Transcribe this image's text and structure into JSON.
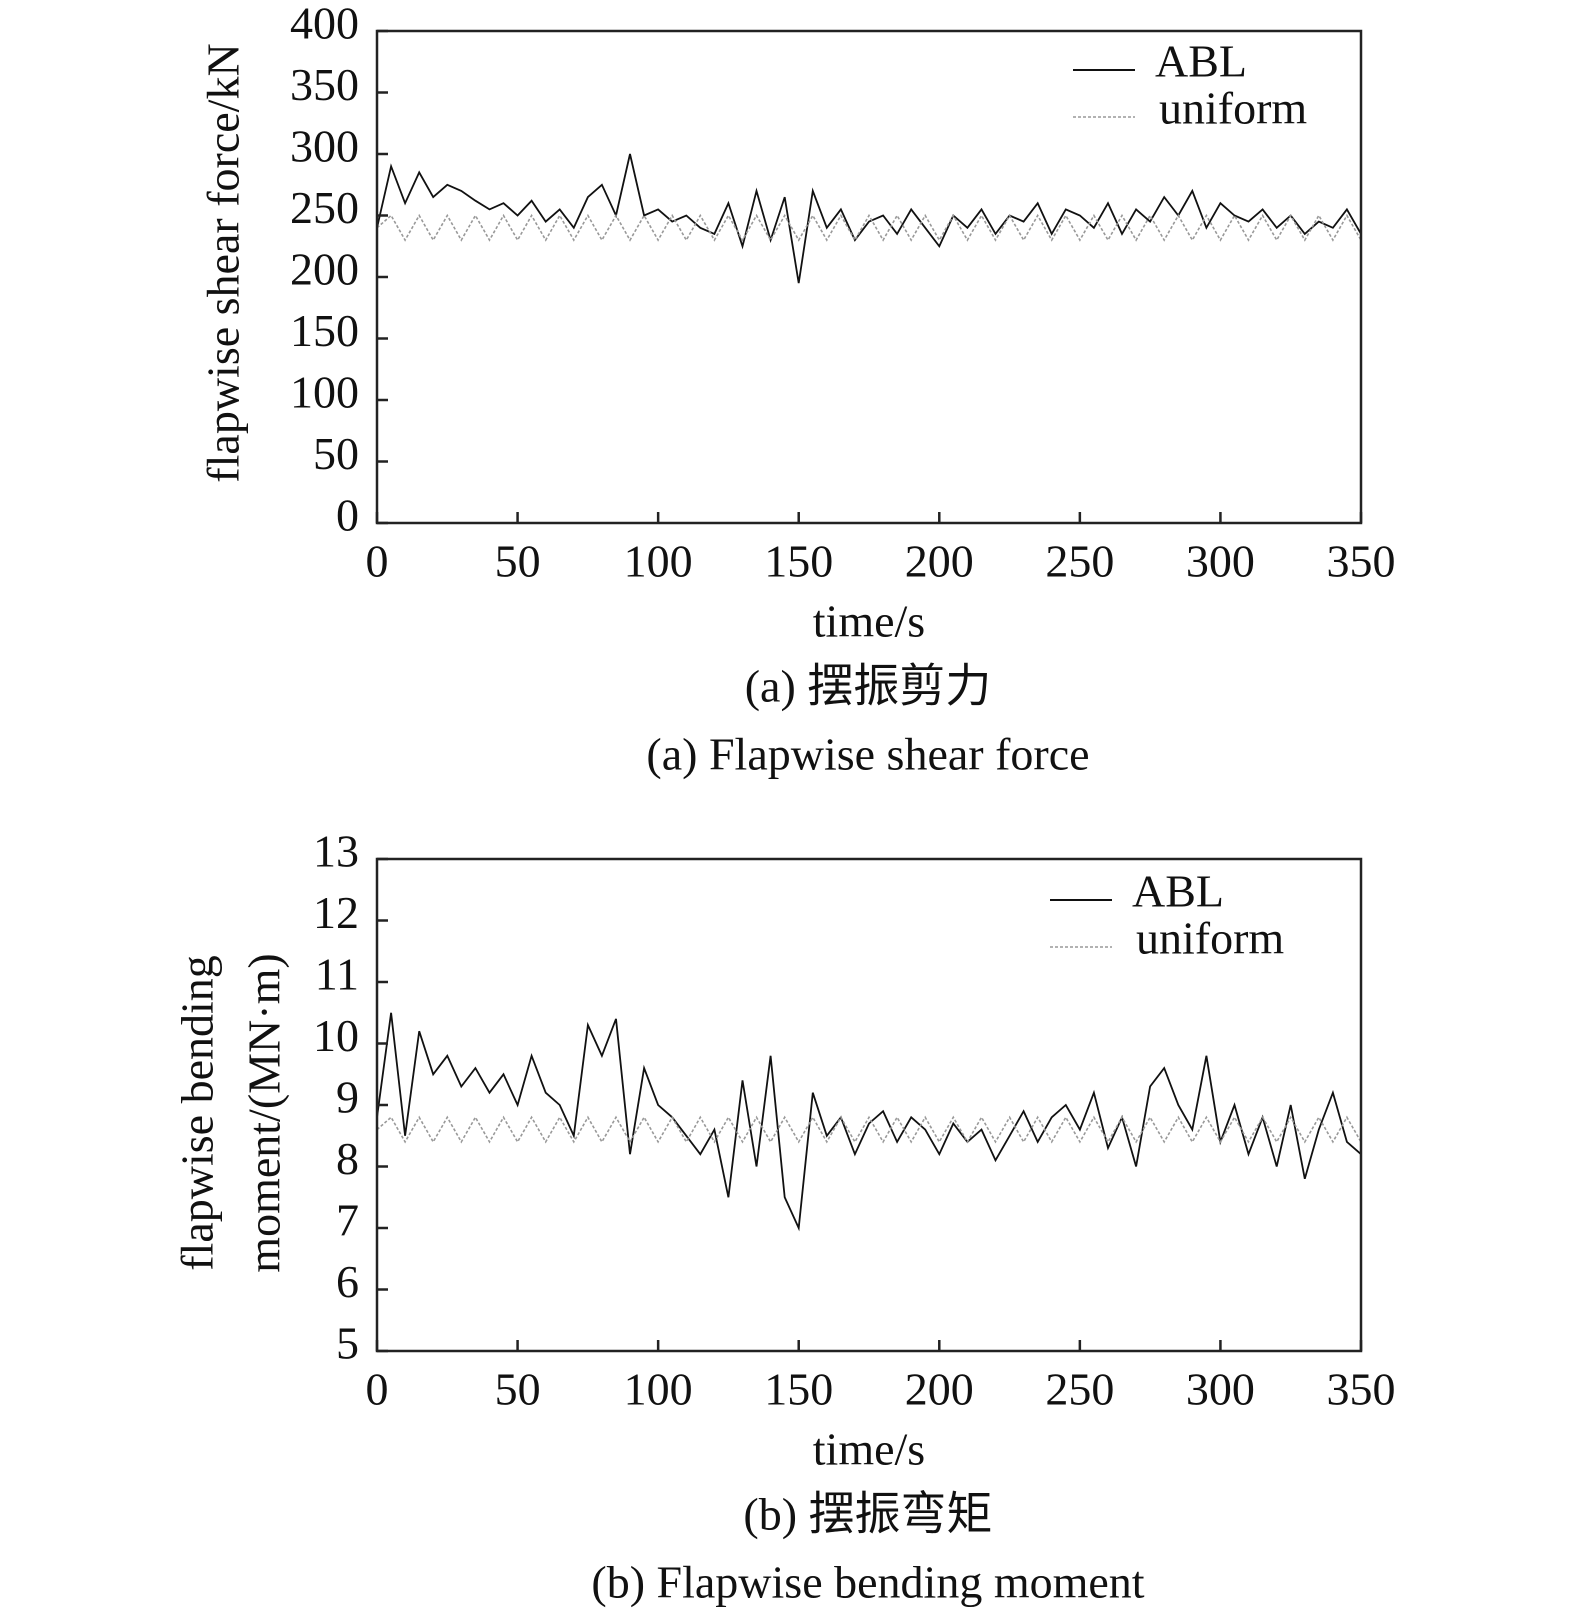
{
  "chart_data": [
    {
      "type": "line",
      "caption_zh": "(a) 摆振剪力",
      "caption_en": "(a) Flapwise shear force",
      "xlabel": "time/s",
      "ylabel": [
        "flapwise shear force/kN"
      ],
      "xlim": [
        0,
        350
      ],
      "xticks": [
        0,
        50,
        100,
        150,
        200,
        250,
        300,
        350
      ],
      "ylim": [
        0,
        400
      ],
      "yticks": [
        0,
        50,
        100,
        150,
        200,
        250,
        300,
        350,
        400
      ],
      "x": [
        0,
        5,
        10,
        15,
        20,
        25,
        30,
        35,
        40,
        45,
        50,
        55,
        60,
        65,
        70,
        75,
        80,
        85,
        90,
        95,
        100,
        105,
        110,
        115,
        120,
        125,
        130,
        135,
        140,
        145,
        150,
        155,
        160,
        165,
        170,
        175,
        180,
        185,
        190,
        195,
        200,
        205,
        210,
        215,
        220,
        225,
        230,
        235,
        240,
        245,
        250,
        255,
        260,
        265,
        270,
        275,
        280,
        285,
        290,
        295,
        300,
        305,
        310,
        315,
        320,
        325,
        330,
        335,
        340,
        345,
        350
      ],
      "series": [
        {
          "name": "ABL",
          "color": "#111111",
          "dash": false,
          "values": [
            240,
            290,
            260,
            285,
            265,
            275,
            270,
            262,
            255,
            260,
            250,
            262,
            245,
            255,
            240,
            265,
            275,
            250,
            300,
            250,
            255,
            245,
            250,
            240,
            235,
            260,
            225,
            270,
            230,
            265,
            195,
            270,
            240,
            255,
            230,
            245,
            250,
            235,
            255,
            240,
            225,
            250,
            240,
            255,
            235,
            250,
            245,
            260,
            235,
            255,
            250,
            240,
            260,
            235,
            255,
            245,
            265,
            250,
            270,
            240,
            260,
            250,
            245,
            255,
            240,
            250,
            235,
            245,
            240,
            255,
            235
          ]
        },
        {
          "name": "uniform",
          "color": "#999999",
          "dash": true,
          "values": [
            240,
            250,
            230,
            250,
            230,
            250,
            230,
            250,
            230,
            250,
            230,
            250,
            230,
            250,
            230,
            250,
            230,
            250,
            230,
            250,
            230,
            250,
            230,
            250,
            230,
            250,
            230,
            250,
            230,
            250,
            230,
            250,
            230,
            250,
            230,
            250,
            230,
            250,
            230,
            250,
            230,
            250,
            230,
            250,
            230,
            250,
            230,
            250,
            230,
            250,
            230,
            250,
            230,
            250,
            230,
            250,
            230,
            250,
            230,
            250,
            230,
            250,
            230,
            250,
            230,
            250,
            230,
            250,
            230,
            250,
            230
          ]
        }
      ]
    },
    {
      "type": "line",
      "caption_zh": "(b) 摆振弯矩",
      "caption_en": "(b) Flapwise bending moment",
      "xlabel": "time/s",
      "ylabel": [
        "flapwise bending",
        "moment/(MN·m)"
      ],
      "xlim": [
        0,
        350
      ],
      "xticks": [
        0,
        50,
        100,
        150,
        200,
        250,
        300,
        350
      ],
      "ylim": [
        5,
        13
      ],
      "yticks": [
        5,
        6,
        7,
        8,
        9,
        10,
        11,
        12,
        13
      ],
      "x": [
        0,
        5,
        10,
        15,
        20,
        25,
        30,
        35,
        40,
        45,
        50,
        55,
        60,
        65,
        70,
        75,
        80,
        85,
        90,
        95,
        100,
        105,
        110,
        115,
        120,
        125,
        130,
        135,
        140,
        145,
        150,
        155,
        160,
        165,
        170,
        175,
        180,
        185,
        190,
        195,
        200,
        205,
        210,
        215,
        220,
        225,
        230,
        235,
        240,
        245,
        250,
        255,
        260,
        265,
        270,
        275,
        280,
        285,
        290,
        295,
        300,
        305,
        310,
        315,
        320,
        325,
        330,
        335,
        340,
        345,
        350
      ],
      "series": [
        {
          "name": "ABL",
          "color": "#111111",
          "dash": false,
          "values": [
            8.8,
            10.5,
            8.5,
            10.2,
            9.5,
            9.8,
            9.3,
            9.6,
            9.2,
            9.5,
            9.0,
            9.8,
            9.2,
            9.0,
            8.5,
            10.3,
            9.8,
            10.4,
            8.2,
            9.6,
            9.0,
            8.8,
            8.5,
            8.2,
            8.6,
            7.5,
            9.4,
            8.0,
            9.8,
            7.5,
            7.0,
            9.2,
            8.5,
            8.8,
            8.2,
            8.7,
            8.9,
            8.4,
            8.8,
            8.6,
            8.2,
            8.7,
            8.4,
            8.6,
            8.1,
            8.5,
            8.9,
            8.4,
            8.8,
            9.0,
            8.6,
            9.2,
            8.3,
            8.8,
            8.0,
            9.3,
            9.6,
            9.0,
            8.6,
            9.8,
            8.4,
            9.0,
            8.2,
            8.8,
            8.0,
            9.0,
            7.8,
            8.6,
            9.2,
            8.4,
            8.2
          ]
        },
        {
          "name": "uniform",
          "color": "#999999",
          "dash": true,
          "values": [
            8.6,
            8.8,
            8.4,
            8.8,
            8.4,
            8.8,
            8.4,
            8.8,
            8.4,
            8.8,
            8.4,
            8.8,
            8.4,
            8.8,
            8.4,
            8.8,
            8.4,
            8.8,
            8.4,
            8.8,
            8.4,
            8.8,
            8.4,
            8.8,
            8.4,
            8.8,
            8.4,
            8.8,
            8.4,
            8.8,
            8.4,
            8.8,
            8.4,
            8.8,
            8.4,
            8.8,
            8.4,
            8.8,
            8.4,
            8.8,
            8.4,
            8.8,
            8.4,
            8.8,
            8.4,
            8.8,
            8.4,
            8.8,
            8.4,
            8.8,
            8.4,
            8.8,
            8.4,
            8.8,
            8.4,
            8.8,
            8.4,
            8.8,
            8.4,
            8.8,
            8.4,
            8.8,
            8.4,
            8.8,
            8.4,
            8.8,
            8.4,
            8.8,
            8.4,
            8.8,
            8.4
          ]
        }
      ]
    }
  ]
}
